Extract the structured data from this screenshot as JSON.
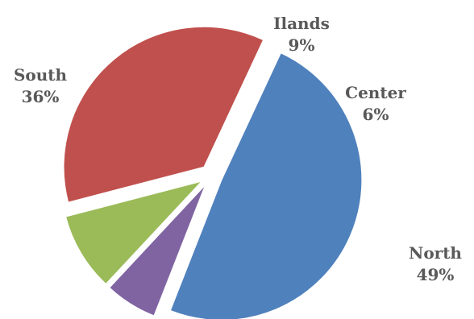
{
  "chart_data": {
    "type": "pie",
    "title": "",
    "categories": [
      "North",
      "Center",
      "Ilands",
      "South"
    ],
    "values": [
      49,
      6,
      9,
      36
    ],
    "labels": [
      "49%",
      "6%",
      "9%",
      "36%"
    ],
    "colors": [
      "#4F81BD",
      "#8064A2",
      "#9BBB59",
      "#C0504D"
    ],
    "exploded": true,
    "legend": "none"
  }
}
